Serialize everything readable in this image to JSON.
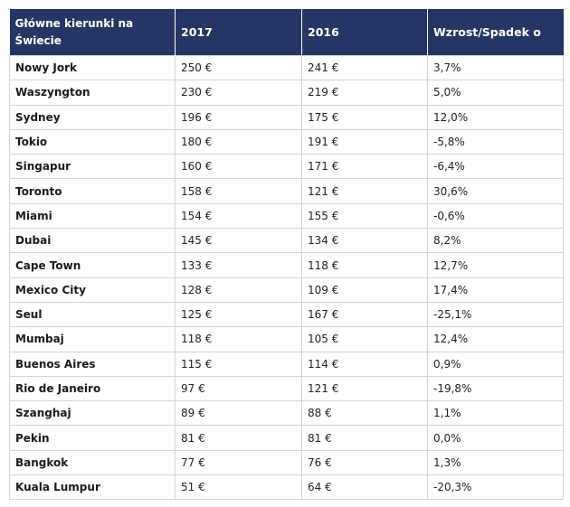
{
  "headers": {
    "city": "Główne kierunki na Świecie",
    "y2017": "2017",
    "y2016": "2016",
    "change": "Wzrost/Spadek o"
  },
  "rows": [
    {
      "city": "Nowy Jork",
      "y2017": "250 €",
      "y2016": "241 €",
      "change": "3,7%"
    },
    {
      "city": "Waszyngton",
      "y2017": "230 €",
      "y2016": "219 €",
      "change": "5,0%"
    },
    {
      "city": "Sydney",
      "y2017": "196 €",
      "y2016": "175 €",
      "change": "12,0%"
    },
    {
      "city": "Tokio",
      "y2017": "180 €",
      "y2016": "191 €",
      "change": "-5,8%"
    },
    {
      "city": "Singapur",
      "y2017": "160 €",
      "y2016": "171 €",
      "change": "-6,4%"
    },
    {
      "city": "Toronto",
      "y2017": "158 €",
      "y2016": "121 €",
      "change": "30,6%"
    },
    {
      "city": "Miami",
      "y2017": "154 €",
      "y2016": "155 €",
      "change": "-0,6%"
    },
    {
      "city": "Dubai",
      "y2017": "145 €",
      "y2016": "134 €",
      "change": "8,2%"
    },
    {
      "city": "Cape Town",
      "y2017": "133 €",
      "y2016": "118 €",
      "change": "12,7%"
    },
    {
      "city": "Mexico City",
      "y2017": "128 €",
      "y2016": "109 €",
      "change": "17,4%"
    },
    {
      "city": "Seul",
      "y2017": "125 €",
      "y2016": "167 €",
      "change": "-25,1%"
    },
    {
      "city": "Mumbaj",
      "y2017": "118 €",
      "y2016": "105 €",
      "change": "12,4%"
    },
    {
      "city": "Buenos Aires",
      "y2017": "115 €",
      "y2016": "114 €",
      "change": "0,9%"
    },
    {
      "city": "Rio de Janeiro",
      "y2017": "97 €",
      "y2016": "121 €",
      "change": "-19,8%"
    },
    {
      "city": "Szanghaj",
      "y2017": "89 €",
      "y2016": "88 €",
      "change": "1,1%"
    },
    {
      "city": "Pekin",
      "y2017": "81 €",
      "y2016": "81 €",
      "change": "0,0%"
    },
    {
      "city": "Bangkok",
      "y2017": "77 €",
      "y2016": "76 €",
      "change": "1,3%"
    },
    {
      "city": "Kuala Lumpur",
      "y2017": "51 €",
      "y2016": "64 €",
      "change": "-20,3%"
    }
  ]
}
